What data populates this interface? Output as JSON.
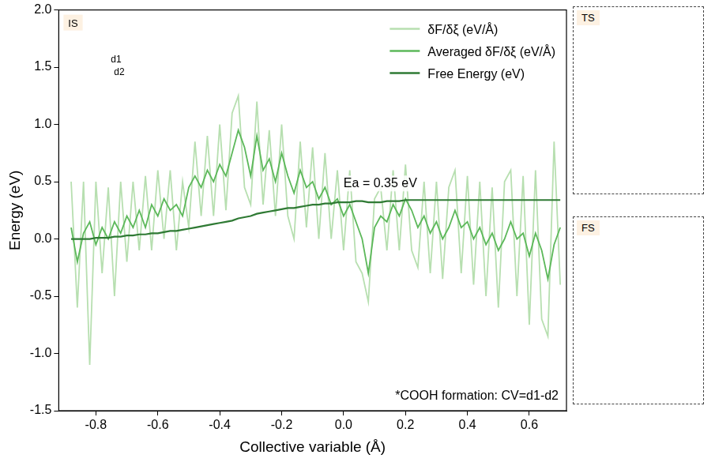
{
  "chart_data": {
    "type": "line",
    "x_label": "Collective variable (Å)",
    "y_label": "Energy (eV)",
    "x": [
      -0.88,
      -0.86,
      -0.84,
      -0.82,
      -0.8,
      -0.78,
      -0.76,
      -0.74,
      -0.72,
      -0.7,
      -0.68,
      -0.66,
      -0.64,
      -0.62,
      -0.6,
      -0.58,
      -0.56,
      -0.54,
      -0.52,
      -0.5,
      -0.48,
      -0.46,
      -0.44,
      -0.42,
      -0.4,
      -0.38,
      -0.36,
      -0.34,
      -0.32,
      -0.3,
      -0.28,
      -0.26,
      -0.24,
      -0.22,
      -0.2,
      -0.18,
      -0.16,
      -0.14,
      -0.12,
      -0.1,
      -0.08,
      -0.06,
      -0.04,
      -0.02,
      0,
      0.02,
      0.04,
      0.06,
      0.08,
      0.1,
      0.12,
      0.14,
      0.16,
      0.18,
      0.2,
      0.22,
      0.24,
      0.26,
      0.28,
      0.3,
      0.32,
      0.34,
      0.36,
      0.38,
      0.4,
      0.42,
      0.44,
      0.46,
      0.48,
      0.5,
      0.52,
      0.54,
      0.56,
      0.58,
      0.6,
      0.62,
      0.64,
      0.66,
      0.68,
      0.7
    ],
    "series": [
      {
        "name": "δF/δξ (eV/Å)",
        "color": "#b7dfb0",
        "values": [
          0.5,
          -0.6,
          0.5,
          -1.1,
          0.5,
          -0.3,
          0.45,
          -0.5,
          0.5,
          -0.2,
          0.5,
          -0.1,
          0.55,
          -0.1,
          0.6,
          0,
          0.6,
          -0.1,
          0.5,
          0.1,
          0.85,
          0.2,
          0.9,
          0.2,
          1.0,
          0.25,
          1.1,
          1.25,
          0.45,
          0.3,
          1.2,
          0.3,
          0.95,
          0.2,
          1.0,
          0.2,
          0,
          0.85,
          0.1,
          0.8,
          0,
          0.75,
          0,
          0.6,
          -0.1,
          0.6,
          -0.2,
          -0.3,
          -0.55,
          0.35,
          0.45,
          -0.1,
          0.6,
          -0.1,
          0.65,
          -0.1,
          -0.25,
          0.5,
          -0.3,
          0.5,
          -0.35,
          0.45,
          0.6,
          -0.3,
          0.55,
          -0.4,
          0.5,
          -0.5,
          0.45,
          -0.6,
          0.5,
          0.6,
          -0.5,
          0.55,
          -0.75,
          0.6,
          -0.7,
          -0.85,
          0.85,
          -0.4
        ]
      },
      {
        "name": "Averaged δF/δξ (eV/Å)",
        "color": "#5cb85a",
        "values": [
          0.1,
          -0.2,
          0.05,
          0.15,
          -0.05,
          0.1,
          0,
          0.15,
          0.05,
          0.2,
          0.1,
          0.25,
          0.1,
          0.3,
          0.2,
          0.35,
          0.25,
          0.3,
          0.2,
          0.45,
          0.55,
          0.45,
          0.6,
          0.5,
          0.65,
          0.55,
          0.75,
          0.95,
          0.8,
          0.55,
          0.9,
          0.6,
          0.7,
          0.5,
          0.75,
          0.55,
          0.4,
          0.6,
          0.45,
          0.5,
          0.35,
          0.45,
          0.3,
          0.35,
          0.2,
          0.3,
          0.15,
          0,
          -0.3,
          0.1,
          0.2,
          0.15,
          0.3,
          0.2,
          0.35,
          0.25,
          0.1,
          0.2,
          0.05,
          0.15,
          0,
          0.1,
          0.25,
          0.1,
          0.15,
          0,
          0.1,
          -0.05,
          0.05,
          -0.1,
          0,
          0.15,
          0,
          0.05,
          -0.15,
          0.05,
          -0.1,
          -0.35,
          -0.05,
          0.1
        ]
      },
      {
        "name": "Free Energy (eV)",
        "color": "#2f7a34",
        "values": [
          0,
          0,
          0,
          0,
          0.01,
          0.01,
          0.01,
          0.02,
          0.02,
          0.03,
          0.03,
          0.04,
          0.04,
          0.05,
          0.05,
          0.06,
          0.07,
          0.07,
          0.08,
          0.09,
          0.1,
          0.11,
          0.12,
          0.13,
          0.14,
          0.15,
          0.16,
          0.18,
          0.19,
          0.2,
          0.22,
          0.23,
          0.24,
          0.25,
          0.26,
          0.27,
          0.27,
          0.28,
          0.29,
          0.3,
          0.3,
          0.31,
          0.31,
          0.32,
          0.32,
          0.32,
          0.33,
          0.33,
          0.32,
          0.32,
          0.32,
          0.33,
          0.33,
          0.33,
          0.34,
          0.34,
          0.34,
          0.34,
          0.34,
          0.34,
          0.34,
          0.34,
          0.34,
          0.34,
          0.34,
          0.34,
          0.34,
          0.34,
          0.34,
          0.34,
          0.34,
          0.34,
          0.34,
          0.34,
          0.34,
          0.34,
          0.34,
          0.34,
          0.34,
          0.34
        ]
      }
    ],
    "xlim": [
      -0.92,
      0.72
    ],
    "xticks": [
      -0.8,
      -0.6,
      -0.4,
      -0.2,
      {
        "value": 0,
        "label": "0.0"
      },
      0.2,
      0.4,
      0.6
    ],
    "ylim": [
      -1.5,
      2.0
    ],
    "yticks": [
      {
        "value": -1.5,
        "label": "-1.5"
      },
      {
        "value": -1,
        "label": "-1.0"
      },
      -0.5,
      {
        "value": 0,
        "label": "0.0"
      },
      0.5,
      {
        "value": 1,
        "label": "1.0"
      },
      1.5,
      {
        "value": 2,
        "label": "2.0"
      }
    ],
    "grid": false,
    "legend": "upper right",
    "annotations": [
      {
        "text": "Ea = 0.35 eV",
        "x": 0.0,
        "y": 0.45
      },
      {
        "text": "*COOH formation: CV=d1-d2"
      }
    ]
  },
  "inset": {
    "label": "IS",
    "distances": [
      "d1",
      "d2"
    ]
  },
  "panels": [
    {
      "label": "TS"
    },
    {
      "label": "FS"
    }
  ]
}
